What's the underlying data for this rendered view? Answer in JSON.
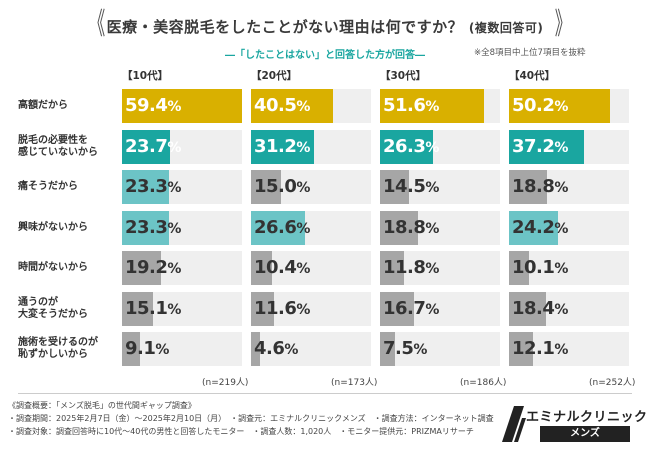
{
  "title": {
    "main": "医療・美容脱毛をしたことがない理由は何ですか？",
    "suffix": "(複数回答可)"
  },
  "subtitle": "―「したことはない」と回答した方が回答―",
  "note": "※全8項目中上位7項目を抜粋",
  "chart_data": {
    "type": "bar",
    "title": "医療・美容脱毛をしたことがない理由は何ですか？(複数回答可)",
    "categories": [
      "高額だから",
      "脱毛の必要性を\n感じていないから",
      "痛そうだから",
      "興味がないから",
      "時間がないから",
      "通うのが\n大変そうだから",
      "施術を受けるのが\n恥ずかしいから"
    ],
    "series": [
      {
        "name": "【10代】",
        "n": "(n=219人)",
        "values": [
          59.4,
          23.7,
          23.3,
          23.3,
          19.2,
          15.1,
          9.1
        ]
      },
      {
        "name": "【20代】",
        "n": "(n=173人)",
        "values": [
          40.5,
          31.2,
          15.0,
          26.6,
          10.4,
          11.6,
          4.6
        ]
      },
      {
        "name": "【30代】",
        "n": "(n=186人)",
        "values": [
          51.6,
          26.3,
          14.5,
          18.8,
          11.8,
          16.7,
          7.5
        ]
      },
      {
        "name": "【40代】",
        "n": "(n=252人)",
        "values": [
          50.2,
          37.2,
          18.8,
          24.2,
          10.1,
          18.4,
          12.1
        ]
      }
    ],
    "unit": "%",
    "xlim": [
      0,
      59.4
    ]
  },
  "colors": {
    "gold": "#d9b000",
    "teal": "#1aa6a0",
    "light_teal": "#6cc4c6",
    "gray": "#a6a6a6",
    "text_dark": "#333333",
    "text_white": "#ffffff"
  },
  "footer": {
    "line1": "《調査概要：「メンズ脱毛」の世代間ギャップ調査》",
    "line2": "・調査期間：2025年2月7日（金）〜2025年2月10日（月）　・調査元：エミナルクリニックメンズ　・調査方法：インターネット調査",
    "line3": "・調査対象：調査回答時に10代〜40代の男性と回答したモニター　・調査人数：1,020人　・モニター提供元：PRIZMAリサーチ"
  },
  "logo": {
    "name": "エミナルクリニック",
    "sub": "メンズ"
  }
}
